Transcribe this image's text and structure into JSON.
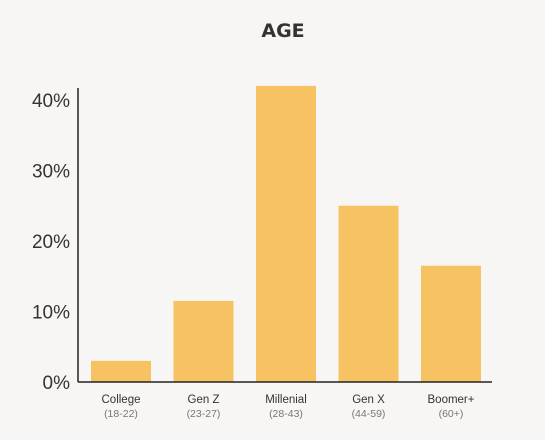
{
  "chart_data": {
    "type": "bar",
    "title": "AGE",
    "categories": [
      "College",
      "Gen Z",
      "Millenial",
      "Gen X",
      "Boomer+"
    ],
    "category_ranges": [
      "(18-22)",
      "(23-27)",
      "(28-43)",
      "(44-59)",
      "(60+)"
    ],
    "values": [
      3,
      11.5,
      42,
      25,
      16.5
    ],
    "ylim": [
      0,
      40
    ],
    "yticks": [
      "0%",
      "10%",
      "20%",
      "30%",
      "40%"
    ],
    "bar_color": "#f6c262",
    "grid": false
  }
}
